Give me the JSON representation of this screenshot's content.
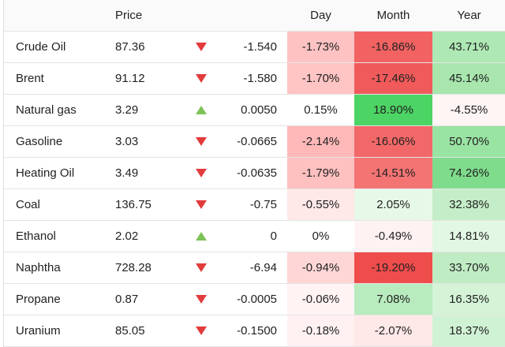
{
  "header": {
    "price": "Price",
    "day": "Day",
    "month": "Month",
    "year": "Year"
  },
  "table": {
    "rows": [
      {
        "name": "Crude Oil",
        "price": "87.36",
        "direction": "down",
        "change": "-1.540",
        "day": "-1.73%",
        "month": "-16.86%",
        "year": "43.71%",
        "day_color": "#ffc2c2",
        "month_color": "#f26262",
        "year_color": "#aee8b4"
      },
      {
        "name": "Brent",
        "price": "91.12",
        "direction": "down",
        "change": "-1.580",
        "day": "-1.70%",
        "month": "-17.46%",
        "year": "45.14%",
        "day_color": "#ffc4c4",
        "month_color": "#f05a5a",
        "year_color": "#a8e6ae"
      },
      {
        "name": "Natural gas",
        "price": "3.29",
        "direction": "up",
        "change": "0.0050",
        "day": "0.15%",
        "month": "18.90%",
        "year": "-4.55%",
        "day_color": "#ffffff",
        "month_color": "#4cd464",
        "year_color": "#fff5f5"
      },
      {
        "name": "Gasoline",
        "price": "3.03",
        "direction": "down",
        "change": "-0.0665",
        "day": "-2.14%",
        "month": "-16.06%",
        "year": "50.70%",
        "day_color": "#ffb8b8",
        "month_color": "#f26868",
        "year_color": "#9ae4a3"
      },
      {
        "name": "Heating Oil",
        "price": "3.49",
        "direction": "down",
        "change": "-0.0635",
        "day": "-1.79%",
        "month": "-14.51%",
        "year": "74.26%",
        "day_color": "#ffc0c0",
        "month_color": "#f47474",
        "year_color": "#7fdc8c"
      },
      {
        "name": "Coal",
        "price": "136.75",
        "direction": "down",
        "change": "-0.75",
        "day": "-0.55%",
        "month": "2.05%",
        "year": "32.38%",
        "day_color": "#ffe8e8",
        "month_color": "#e6f9e8",
        "year_color": "#c4eec8"
      },
      {
        "name": "Ethanol",
        "price": "2.02",
        "direction": "up",
        "change": "0",
        "day": "0%",
        "month": "-0.49%",
        "year": "14.81%",
        "day_color": "#ffffff",
        "month_color": "#fff2f2",
        "year_color": "#e2f7e4"
      },
      {
        "name": "Naphtha",
        "price": "728.28",
        "direction": "down",
        "change": "-6.94",
        "day": "-0.94%",
        "month": "-19.20%",
        "year": "33.70%",
        "day_color": "#ffd6d6",
        "month_color": "#ef4c4c",
        "year_color": "#c0ecc4"
      },
      {
        "name": "Propane",
        "price": "0.87",
        "direction": "down",
        "change": "-0.0005",
        "day": "-0.06%",
        "month": "7.08%",
        "year": "16.35%",
        "day_color": "#fff3f3",
        "month_color": "#b8ebbe",
        "year_color": "#d4f3d7"
      },
      {
        "name": "Uranium",
        "price": "85.05",
        "direction": "down",
        "change": "-0.1500",
        "day": "-0.18%",
        "month": "-2.07%",
        "year": "18.37%",
        "day_color": "#fff1f1",
        "month_color": "#ffe8e8",
        "year_color": "#d0f2d4"
      }
    ]
  }
}
